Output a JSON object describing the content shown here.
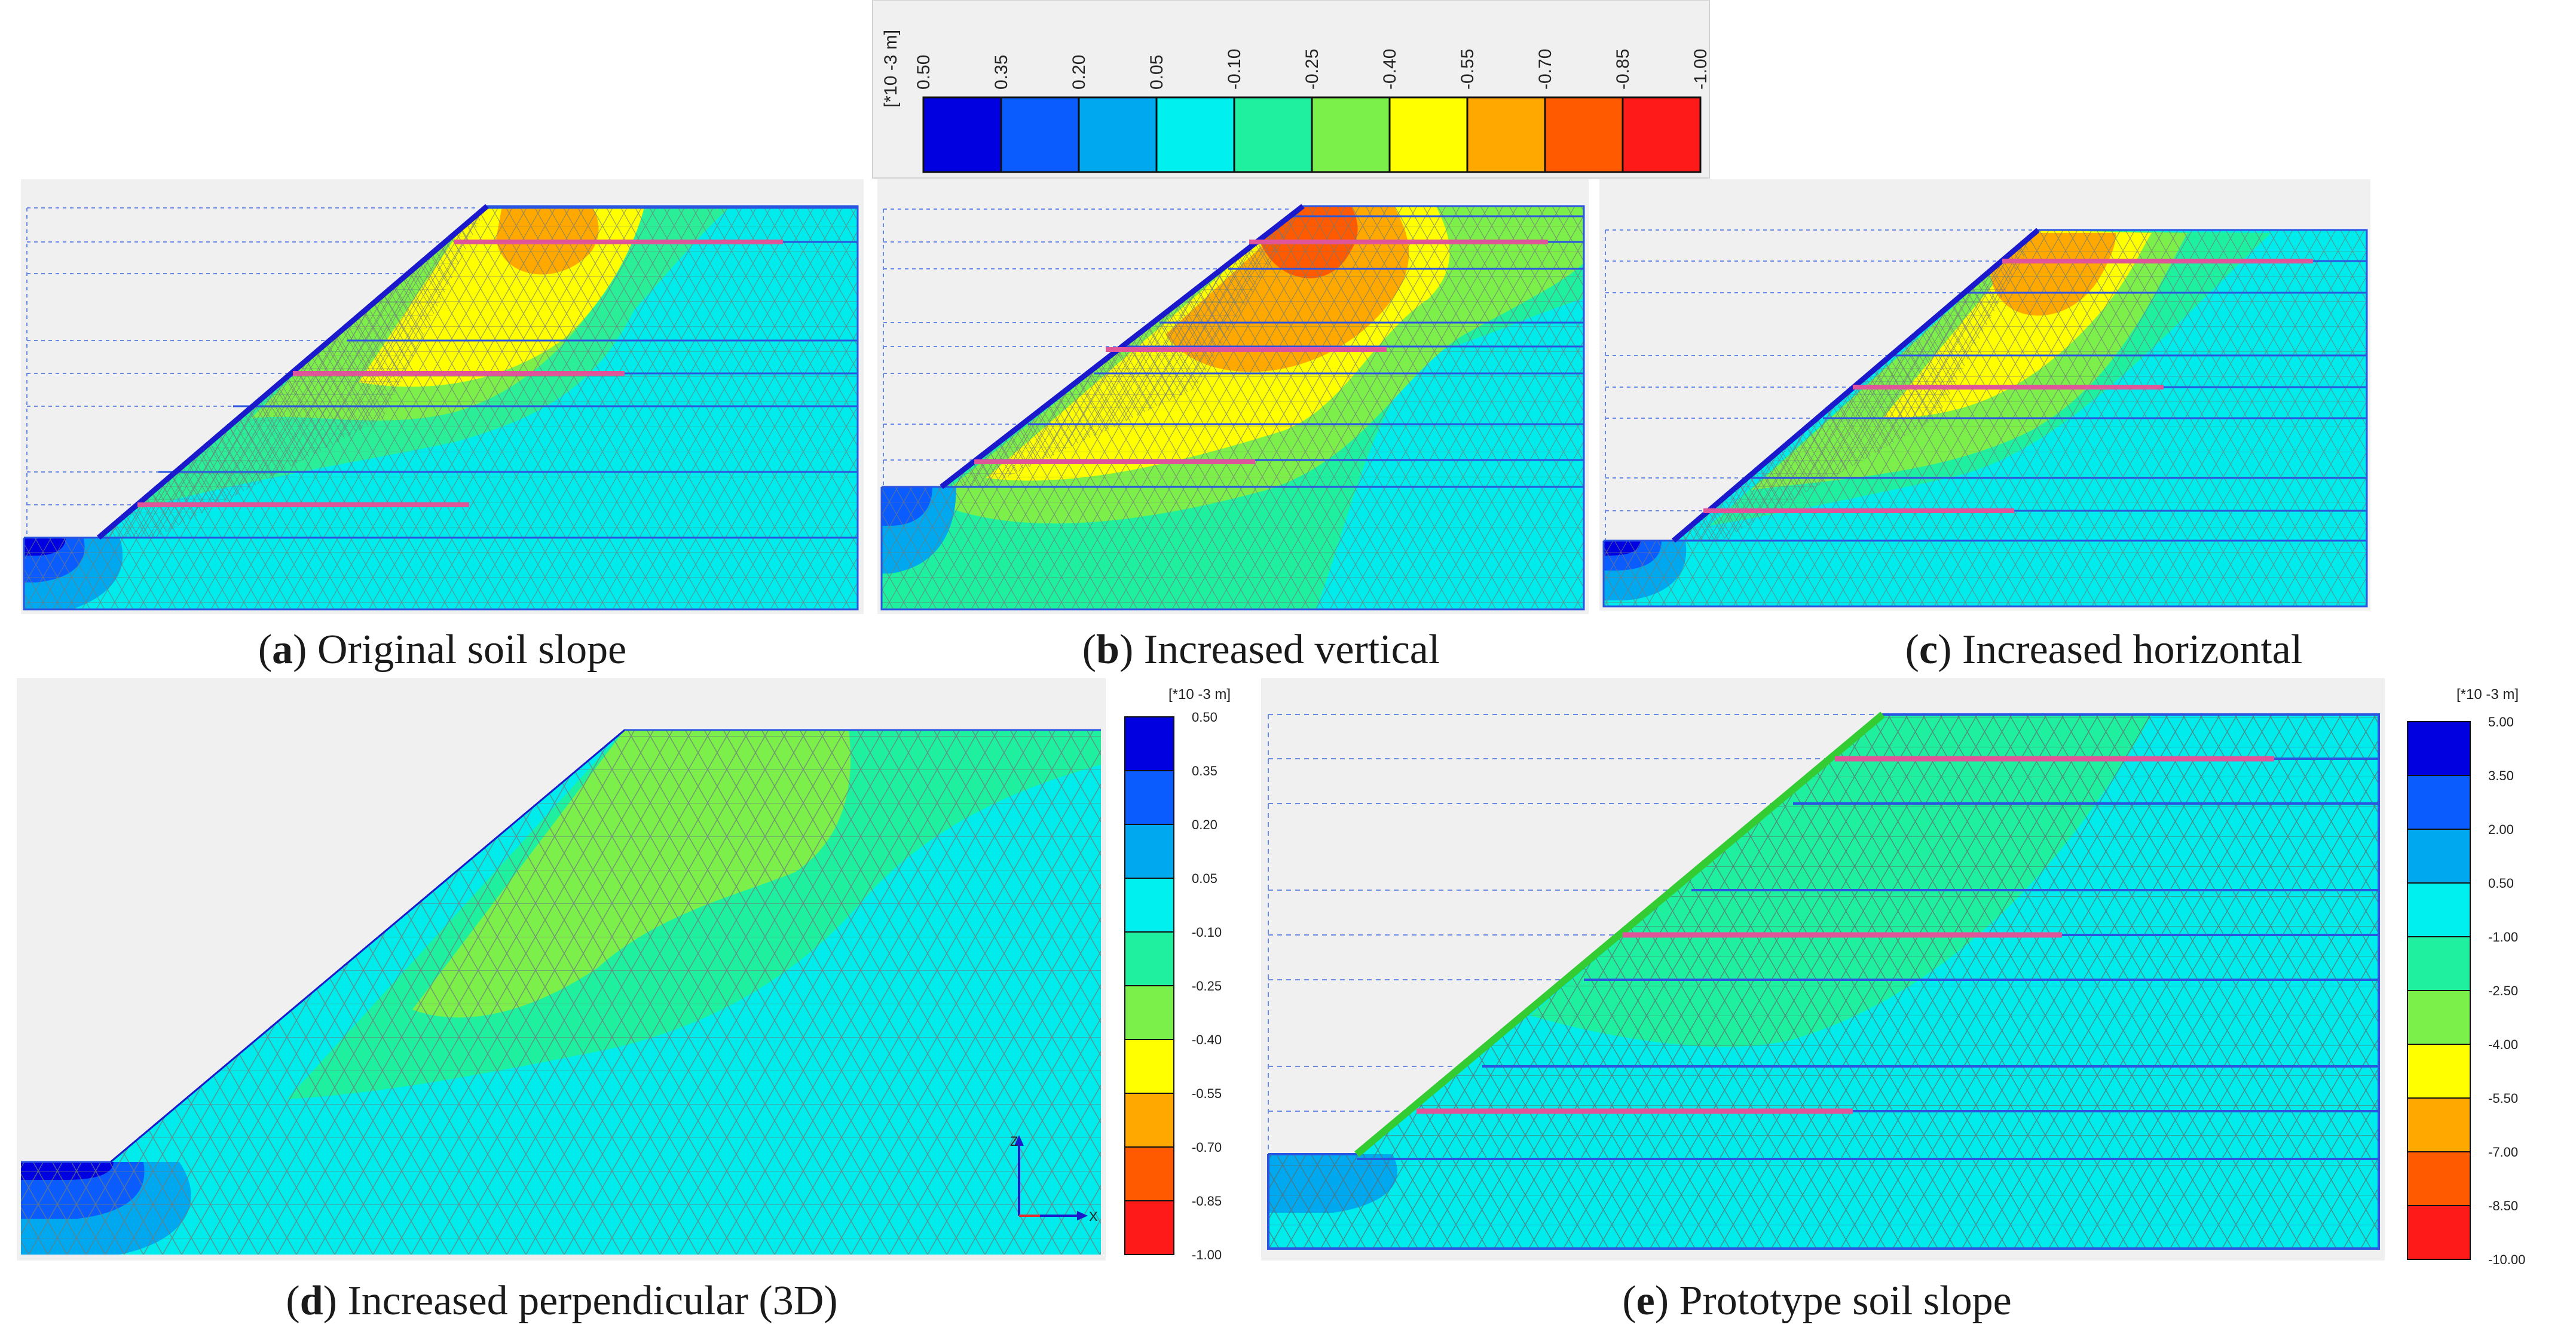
{
  "top_colorbar": {
    "unit": "[*10 -3 m]",
    "ticks": [
      "0.50",
      "0.35",
      "0.20",
      "0.05",
      "-0.10",
      "-0.25",
      "-0.40",
      "-0.55",
      "-0.70",
      "-0.85",
      "-1.00"
    ],
    "colors": [
      "#0000e0",
      "#0a5cff",
      "#00a8f0",
      "#00f0f0",
      "#1ef0a0",
      "#7cf04a",
      "#ffff00",
      "#ffa800",
      "#ff5a00",
      "#ff1a1a"
    ]
  },
  "panels": {
    "a": {
      "caption_letter": "a",
      "caption_text": " Original soil slope",
      "caption_open": "(",
      "caption_close": ")"
    },
    "b": {
      "caption_letter": "b",
      "caption_text": " Increased vertical",
      "caption_open": "(",
      "caption_close": ")"
    },
    "c": {
      "caption_letter": "c",
      "caption_text": " Increased horizontal",
      "caption_open": "(",
      "caption_close": ")"
    },
    "d": {
      "caption_letter": "d",
      "caption_text": " Increased perpendicular (3D)",
      "caption_open": "(",
      "caption_close": ")",
      "axis_z": "Z",
      "axis_x": "X"
    },
    "e": {
      "caption_letter": "e",
      "caption_text": " Prototype soil slope",
      "caption_open": "(",
      "caption_close": ")"
    }
  },
  "colorbar_d": {
    "unit": "[*10 -3 m]",
    "ticks": [
      "0.50",
      "0.35",
      "0.20",
      "0.05",
      "-0.10",
      "-0.25",
      "-0.40",
      "-0.55",
      "-0.70",
      "-0.85",
      "-1.00"
    ]
  },
  "colorbar_e": {
    "unit": "[*10 -3 m]",
    "ticks": [
      "5.00",
      "3.50",
      "2.00",
      "0.50",
      "-1.00",
      "-2.50",
      "-4.00",
      "-5.50",
      "-7.00",
      "-8.50",
      "-10.00"
    ]
  },
  "colors": {
    "nail": "#e0559a",
    "facing_blue": "#1a1acc",
    "facing_green": "#33cc33",
    "boundary_line": "#2a55e0",
    "mesh": "#777777"
  }
}
